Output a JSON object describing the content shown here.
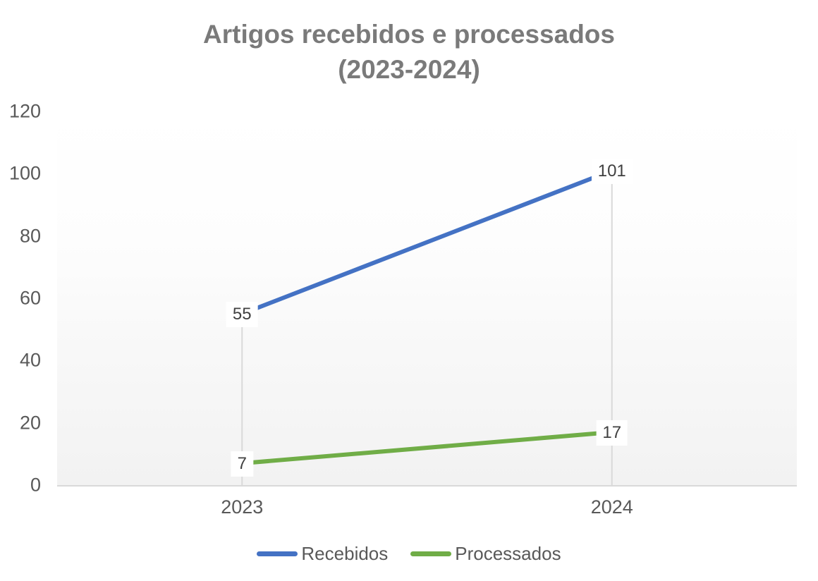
{
  "chart_data": {
    "type": "line",
    "title": "Artigos recebidos e processados",
    "subtitle": "(2023-2024)",
    "categories": [
      "2023",
      "2024"
    ],
    "series": [
      {
        "name": "Recebidos",
        "color": "#4472C4",
        "values": [
          55,
          101
        ]
      },
      {
        "name": "Processados",
        "color": "#70AD47",
        "values": [
          7,
          17
        ]
      }
    ],
    "y_axis": {
      "min": 0,
      "max": 120,
      "step": 20,
      "ticks": [
        0,
        20,
        40,
        60,
        80,
        100,
        120
      ]
    },
    "x_axis_labels": [
      "2023",
      "2024"
    ],
    "data_labels": [
      [
        "55",
        "101"
      ],
      [
        "7",
        "17"
      ]
    ],
    "grid": "vertical-drop-lines-only",
    "legend_position": "bottom"
  },
  "colors": {
    "title_text": "#7a7a7a",
    "tick_text": "#595959",
    "data_label_text": "#404040",
    "axis_line": "#d9d9d9",
    "drop_line": "#d9d9d9",
    "plot_bg_top": "#ffffff",
    "plot_bg_bottom": "#f2f2f2"
  }
}
